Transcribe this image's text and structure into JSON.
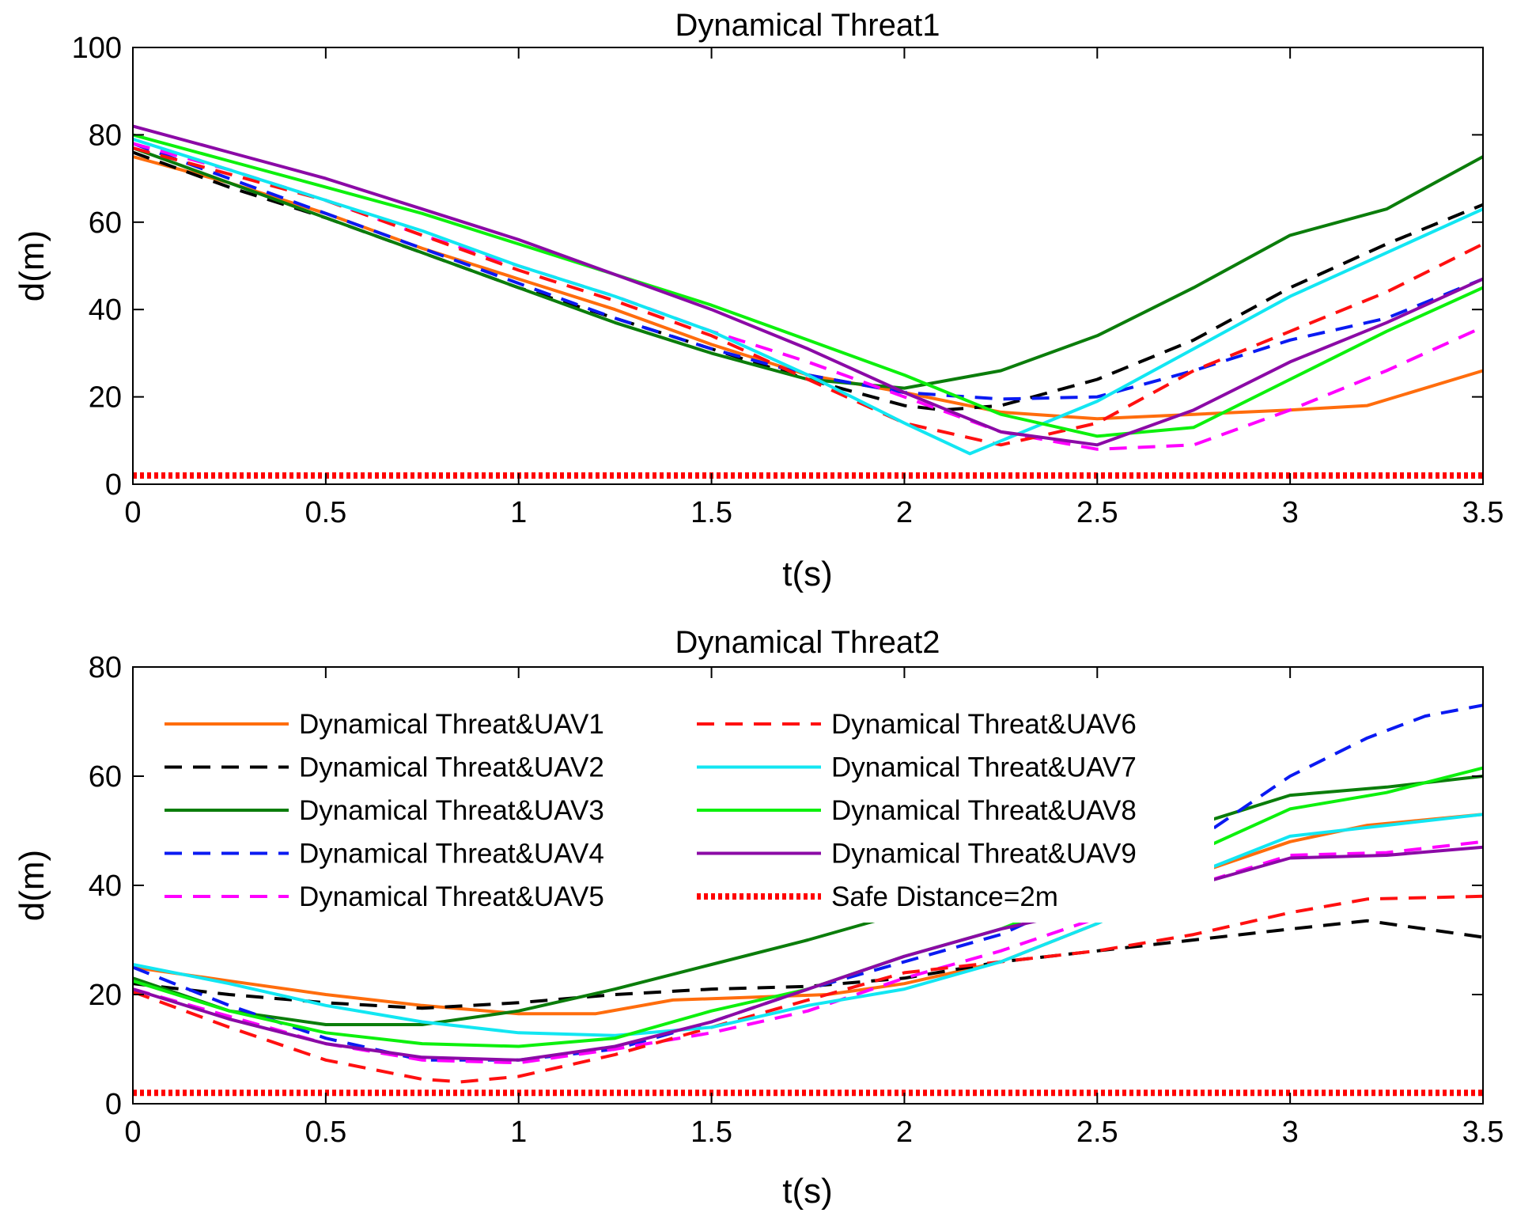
{
  "colors": {
    "UAV1": "#ff6d0d",
    "UAV2": "#000000",
    "UAV3": "#0b7d0b",
    "UAV4": "#0a1af2",
    "UAV5": "#ff00ff",
    "UAV6": "#ff1010",
    "UAV7": "#12e6f2",
    "UAV8": "#0df00d",
    "UAV9": "#8b0aa6",
    "safe": "#ff0000"
  },
  "chart_data": [
    {
      "type": "line",
      "title": "Dynamical Threat1",
      "xlabel": "t(s)",
      "ylabel": "d(m)",
      "xlim": [
        0,
        3.5
      ],
      "ylim": [
        0,
        100
      ],
      "xticks": [
        0,
        0.5,
        1,
        1.5,
        2,
        2.5,
        3,
        3.5
      ],
      "xtick_labels": [
        "0",
        "0.5",
        "1",
        "1.5",
        "2",
        "2.5",
        "3",
        "3.5"
      ],
      "yticks": [
        0,
        20,
        40,
        60,
        80,
        100
      ],
      "ytick_labels": [
        "0",
        "20",
        "40",
        "60",
        "80",
        "100"
      ],
      "series": [
        {
          "name": "Dynamical Threat&UAV1",
          "color_key": "UAV1",
          "dash": "solid",
          "x": [
            0,
            0.25,
            0.5,
            0.75,
            1,
            1.25,
            1.5,
            1.75,
            2,
            2.25,
            2.5,
            2.75,
            3,
            3.2,
            3.5
          ],
          "y": [
            75,
            69,
            62,
            54,
            47,
            40,
            32,
            25,
            21,
            16.5,
            15,
            16,
            17,
            18,
            26
          ]
        },
        {
          "name": "Dynamical Threat&UAV2",
          "color_key": "UAV2",
          "dash": "dashed",
          "x": [
            0,
            0.25,
            0.5,
            0.75,
            1,
            1.25,
            1.5,
            1.75,
            2,
            2.1,
            2.25,
            2.5,
            2.75,
            3,
            3.25,
            3.5
          ],
          "y": [
            76,
            68,
            61,
            53,
            45,
            38,
            31,
            24,
            18,
            17,
            18,
            24,
            33,
            45,
            55,
            64
          ]
        },
        {
          "name": "Dynamical Threat&UAV3",
          "color_key": "UAV3",
          "dash": "solid",
          "x": [
            0,
            0.25,
            0.5,
            0.75,
            1,
            1.25,
            1.5,
            1.75,
            2,
            2.25,
            2.5,
            2.75,
            3,
            3.25,
            3.5
          ],
          "y": [
            77,
            69,
            61,
            53,
            45,
            37,
            30,
            24,
            22,
            26,
            34,
            45,
            57,
            63,
            75
          ]
        },
        {
          "name": "Dynamical Threat&UAV4",
          "color_key": "UAV4",
          "dash": "dashed",
          "x": [
            0,
            0.25,
            0.5,
            0.75,
            1,
            1.25,
            1.5,
            1.75,
            2,
            2.25,
            2.5,
            2.75,
            3,
            3.25,
            3.5
          ],
          "y": [
            78,
            70,
            62,
            54,
            46,
            38,
            31,
            25,
            21,
            19.5,
            20,
            26,
            33,
            38,
            47
          ]
        },
        {
          "name": "Dynamical Threat&UAV5",
          "color_key": "UAV5",
          "dash": "dashed",
          "x": [
            0,
            0.25,
            0.5,
            0.75,
            1,
            1.25,
            1.5,
            1.75,
            2,
            2.25,
            2.5,
            2.75,
            3,
            3.25,
            3.5
          ],
          "y": [
            78,
            72,
            65,
            57,
            50,
            43,
            35,
            28,
            20,
            12,
            8,
            9,
            17,
            26,
            36
          ]
        },
        {
          "name": "Dynamical Threat&UAV6",
          "color_key": "UAV6",
          "dash": "dashed",
          "x": [
            0,
            0.25,
            0.5,
            0.75,
            1,
            1.25,
            1.5,
            1.75,
            2,
            2.25,
            2.5,
            2.75,
            3,
            3.25,
            3.5
          ],
          "y": [
            77,
            71,
            65,
            57,
            49,
            42,
            34,
            24,
            14,
            9,
            14,
            26,
            35,
            44,
            55
          ]
        },
        {
          "name": "Dynamical Threat&UAV7",
          "color_key": "UAV7",
          "dash": "solid",
          "x": [
            0,
            0.25,
            0.5,
            0.75,
            1,
            1.25,
            1.5,
            1.75,
            2,
            2.17,
            2.5,
            2.75,
            3,
            3.25,
            3.5
          ],
          "y": [
            79,
            72,
            65,
            58,
            50,
            43,
            35,
            25,
            14,
            7,
            19,
            31,
            43,
            53,
            63
          ]
        },
        {
          "name": "Dynamical Threat&UAV8",
          "color_key": "UAV8",
          "dash": "solid",
          "x": [
            0,
            0.25,
            0.5,
            0.75,
            1,
            1.25,
            1.5,
            1.75,
            2,
            2.25,
            2.5,
            2.75,
            3,
            3.25,
            3.5
          ],
          "y": [
            80,
            74,
            68,
            62,
            55,
            48,
            41,
            33,
            25,
            16,
            11,
            13,
            24,
            35,
            45
          ]
        },
        {
          "name": "Dynamical Threat&UAV9",
          "color_key": "UAV9",
          "dash": "solid",
          "x": [
            0,
            0.25,
            0.5,
            0.75,
            1,
            1.25,
            1.5,
            1.75,
            2,
            2.25,
            2.5,
            2.75,
            3,
            3.25,
            3.5
          ],
          "y": [
            82,
            76,
            70,
            63,
            56,
            48,
            40,
            31,
            21,
            12,
            9,
            17,
            28,
            37,
            47
          ]
        },
        {
          "name": "Safe Distance=2m",
          "color_key": "safe",
          "dash": "dotted",
          "x": [
            0,
            3.5
          ],
          "y": [
            2,
            2
          ]
        }
      ]
    },
    {
      "type": "line",
      "title": "Dynamical Threat2",
      "xlabel": "t(s)",
      "ylabel": "d(m)",
      "xlim": [
        0,
        3.5
      ],
      "ylim": [
        0,
        80
      ],
      "xticks": [
        0,
        0.5,
        1,
        1.5,
        2,
        2.5,
        3,
        3.5
      ],
      "xtick_labels": [
        "0",
        "0.5",
        "1",
        "1.5",
        "2",
        "2.5",
        "3",
        "3.5"
      ],
      "yticks": [
        0,
        20,
        40,
        60,
        80
      ],
      "ytick_labels": [
        "0",
        "20",
        "40",
        "60",
        "80"
      ],
      "legend": {
        "placement": "upper-left",
        "columns": 2
      },
      "series": [
        {
          "name": "Dynamical Threat&UAV1",
          "color_key": "UAV1",
          "dash": "solid",
          "x": [
            0,
            0.25,
            0.5,
            0.75,
            1,
            1.2,
            1.4,
            1.6,
            1.8,
            2,
            2.25,
            2.5,
            2.75,
            3,
            3.2,
            3.5
          ],
          "y": [
            25,
            22.5,
            20,
            18,
            16.5,
            16.5,
            19,
            19.5,
            20,
            22,
            26,
            33,
            42,
            48,
            51,
            53
          ]
        },
        {
          "name": "Dynamical Threat&UAV2",
          "color_key": "UAV2",
          "dash": "dashed",
          "x": [
            0,
            0.25,
            0.5,
            0.75,
            1,
            1.25,
            1.5,
            1.75,
            2,
            2.25,
            2.5,
            2.75,
            3,
            3.2,
            3.5
          ],
          "y": [
            22,
            20,
            18.5,
            17.5,
            18.5,
            20,
            21,
            21.5,
            23,
            26,
            28,
            30,
            32,
            33.5,
            30.5
          ]
        },
        {
          "name": "Dynamical Threat&UAV3",
          "color_key": "UAV3",
          "dash": "solid",
          "x": [
            0,
            0.25,
            0.5,
            0.75,
            1,
            1.25,
            1.5,
            1.75,
            2,
            2.25,
            2.5,
            2.75,
            3,
            3.25,
            3.5
          ],
          "y": [
            23,
            17,
            14.5,
            14.5,
            17,
            21,
            25.5,
            30,
            35,
            40,
            45,
            51,
            56.5,
            58,
            60
          ]
        },
        {
          "name": "Dynamical Threat&UAV4",
          "color_key": "UAV4",
          "dash": "dashed",
          "x": [
            0,
            0.25,
            0.5,
            0.75,
            1,
            1.25,
            1.5,
            1.75,
            2,
            2.25,
            2.5,
            2.75,
            3,
            3.2,
            3.35,
            3.5
          ],
          "y": [
            25,
            18,
            12,
            8,
            8,
            10,
            15,
            21,
            26,
            31,
            39,
            48,
            60,
            67,
            71,
            73
          ]
        },
        {
          "name": "Dynamical Threat&UAV5",
          "color_key": "UAV5",
          "dash": "dashed",
          "x": [
            0,
            0.25,
            0.5,
            0.75,
            1,
            1.25,
            1.5,
            1.75,
            2,
            2.25,
            2.5,
            2.75,
            3,
            3.25,
            3.5
          ],
          "y": [
            21,
            16,
            11,
            8,
            7.5,
            10,
            13,
            17,
            23,
            28,
            34,
            40,
            45.5,
            46,
            48
          ]
        },
        {
          "name": "Dynamical Threat&UAV6",
          "color_key": "UAV6",
          "dash": "dashed",
          "x": [
            0,
            0.25,
            0.5,
            0.75,
            0.85,
            1,
            1.25,
            1.5,
            1.75,
            2,
            2.25,
            2.5,
            2.75,
            3,
            3.2,
            3.5
          ],
          "y": [
            20.5,
            14,
            8,
            4.5,
            4,
            5,
            9,
            14,
            19,
            24,
            26,
            28,
            31,
            35,
            37.5,
            38
          ]
        },
        {
          "name": "Dynamical Threat&UAV7",
          "color_key": "UAV7",
          "dash": "solid",
          "x": [
            0,
            0.25,
            0.5,
            0.75,
            1,
            1.25,
            1.5,
            1.75,
            2,
            2.25,
            2.5,
            2.75,
            3,
            3.25,
            3.5
          ],
          "y": [
            25.5,
            22,
            18,
            15,
            13,
            12.5,
            14,
            18,
            21,
            26,
            33,
            42,
            49,
            51,
            53
          ]
        },
        {
          "name": "Dynamical Threat&UAV8",
          "color_key": "UAV8",
          "dash": "solid",
          "x": [
            0,
            0.25,
            0.5,
            0.75,
            1,
            1.25,
            1.5,
            1.75,
            2,
            2.25,
            2.5,
            2.75,
            3,
            3.25,
            3.5
          ],
          "y": [
            22.5,
            17,
            13,
            11,
            10.5,
            12,
            17,
            21,
            27,
            32,
            39,
            46,
            54,
            57,
            61.5
          ]
        },
        {
          "name": "Dynamical Threat&UAV9",
          "color_key": "UAV9",
          "dash": "solid",
          "x": [
            0,
            0.25,
            0.5,
            0.75,
            1,
            1.25,
            1.5,
            1.75,
            2,
            2.25,
            2.5,
            2.75,
            3,
            3.25,
            3.5
          ],
          "y": [
            21,
            15.5,
            11,
            8.5,
            8,
            10.5,
            15,
            21,
            27,
            32,
            36,
            40,
            45,
            45.5,
            47
          ]
        },
        {
          "name": "Safe Distance=2m",
          "color_key": "safe",
          "dash": "dotted",
          "x": [
            0,
            3.5
          ],
          "y": [
            2,
            2
          ]
        }
      ]
    }
  ]
}
